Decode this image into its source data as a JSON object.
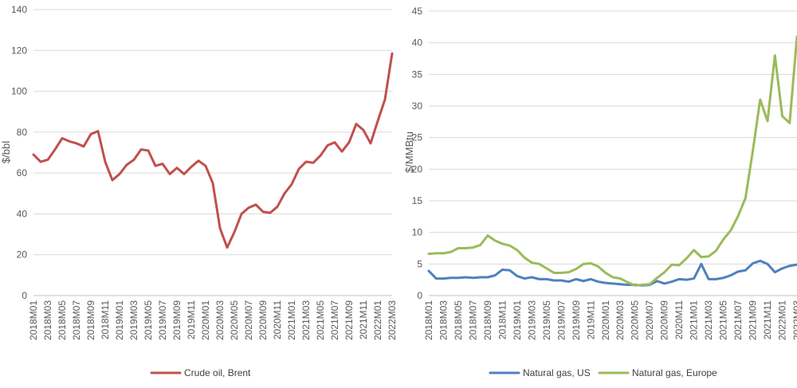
{
  "chart_data": [
    {
      "type": "line",
      "ylabel": "$/bbl",
      "ylim": [
        0,
        140
      ],
      "yticks": [
        0,
        20,
        40,
        60,
        80,
        100,
        120,
        140
      ],
      "x_tick_labels": [
        "2018M01",
        "2018M03",
        "2018M05",
        "2018M07",
        "2018M09",
        "2018M11",
        "2019M01",
        "2019M03",
        "2019M05",
        "2019M07",
        "2019M09",
        "2019M11",
        "2020M01",
        "2020M03",
        "2020M05",
        "2020M07",
        "2020M09",
        "2020M11",
        "2021M01",
        "2021M03",
        "2021M05",
        "2021M07",
        "2021M09",
        "2021M11",
        "2022M01",
        "2022M03"
      ],
      "x": [
        "2018M01",
        "2018M02",
        "2018M03",
        "2018M04",
        "2018M05",
        "2018M06",
        "2018M07",
        "2018M08",
        "2018M09",
        "2018M10",
        "2018M11",
        "2018M12",
        "2019M01",
        "2019M02",
        "2019M03",
        "2019M04",
        "2019M05",
        "2019M06",
        "2019M07",
        "2019M08",
        "2019M09",
        "2019M10",
        "2019M11",
        "2019M12",
        "2020M01",
        "2020M02",
        "2020M03",
        "2020M04",
        "2020M05",
        "2020M06",
        "2020M07",
        "2020M08",
        "2020M09",
        "2020M10",
        "2020M11",
        "2020M12",
        "2021M01",
        "2021M02",
        "2021M03",
        "2021M04",
        "2021M05",
        "2021M06",
        "2021M07",
        "2021M08",
        "2021M09",
        "2021M10",
        "2021M11",
        "2021M12",
        "2022M01",
        "2022M02",
        "2022M03"
      ],
      "legend_position": "bottom",
      "grid": true,
      "series": [
        {
          "name": "Crude oil, Brent",
          "color": "#c0504d",
          "values": [
            69,
            65.5,
            66.5,
            71.5,
            77,
            75.5,
            74.5,
            73,
            79,
            80.5,
            65.5,
            56.5,
            59.5,
            64,
            66.5,
            71.5,
            71,
            63.5,
            64.5,
            59.5,
            62.5,
            59.5,
            63,
            66,
            63.5,
            55,
            33,
            23.5,
            31,
            40,
            43,
            44.5,
            41,
            40.5,
            43.5,
            50,
            54.5,
            62,
            65.5,
            65,
            68.5,
            73.5,
            75,
            70.5,
            75,
            84,
            81,
            74.5,
            85.5,
            96,
            118.5
          ]
        }
      ]
    },
    {
      "type": "line",
      "ylabel": "$/MMBtu",
      "ylim": [
        0,
        45
      ],
      "yticks": [
        0,
        5,
        10,
        15,
        20,
        25,
        30,
        35,
        40,
        45
      ],
      "x_tick_labels": [
        "2018M01",
        "2018M03",
        "2018M05",
        "2018M07",
        "2018M09",
        "2018M11",
        "2019M01",
        "2019M03",
        "2019M05",
        "2019M07",
        "2019M09",
        "2019M11",
        "2020M01",
        "2020M03",
        "2020M05",
        "2020M07",
        "2020M09",
        "2020M11",
        "2021M01",
        "2021M03",
        "2021M05",
        "2021M07",
        "2021M09",
        "2021M11",
        "2022M01",
        "2022M03"
      ],
      "x": [
        "2018M01",
        "2018M02",
        "2018M03",
        "2018M04",
        "2018M05",
        "2018M06",
        "2018M07",
        "2018M08",
        "2018M09",
        "2018M10",
        "2018M11",
        "2018M12",
        "2019M01",
        "2019M02",
        "2019M03",
        "2019M04",
        "2019M05",
        "2019M06",
        "2019M07",
        "2019M08",
        "2019M09",
        "2019M10",
        "2019M11",
        "2019M12",
        "2020M01",
        "2020M02",
        "2020M03",
        "2020M04",
        "2020M05",
        "2020M06",
        "2020M07",
        "2020M08",
        "2020M09",
        "2020M10",
        "2020M11",
        "2020M12",
        "2021M01",
        "2021M02",
        "2021M03",
        "2021M04",
        "2021M05",
        "2021M06",
        "2021M07",
        "2021M08",
        "2021M09",
        "2021M10",
        "2021M11",
        "2021M12",
        "2022M01",
        "2022M02",
        "2022M03"
      ],
      "legend_position": "bottom",
      "grid": true,
      "series": [
        {
          "name": "Natural gas, US",
          "color": "#4f81bd",
          "values": [
            3.9,
            2.7,
            2.7,
            2.8,
            2.8,
            2.9,
            2.8,
            2.9,
            2.9,
            3.2,
            4.1,
            4.0,
            3.1,
            2.7,
            2.9,
            2.6,
            2.6,
            2.4,
            2.4,
            2.2,
            2.6,
            2.3,
            2.6,
            2.2,
            2.0,
            1.9,
            1.8,
            1.7,
            1.7,
            1.6,
            1.7,
            2.3,
            1.9,
            2.2,
            2.6,
            2.5,
            2.7,
            5.0,
            2.6,
            2.6,
            2.8,
            3.2,
            3.8,
            4.0,
            5.1,
            5.5,
            5.0,
            3.7,
            4.3,
            4.7,
            4.9
          ]
        },
        {
          "name": "Natural gas, Europe",
          "color": "#9bbb59",
          "values": [
            6.6,
            6.7,
            6.7,
            6.9,
            7.5,
            7.5,
            7.6,
            8.0,
            9.5,
            8.7,
            8.2,
            7.9,
            7.2,
            6.0,
            5.2,
            5.0,
            4.3,
            3.6,
            3.6,
            3.7,
            4.2,
            5.0,
            5.1,
            4.6,
            3.6,
            2.9,
            2.7,
            2.1,
            1.6,
            1.7,
            1.8,
            2.8,
            3.7,
            4.9,
            4.8,
            5.9,
            7.2,
            6.1,
            6.2,
            7.1,
            8.9,
            10.3,
            12.6,
            15.4,
            22.9,
            31.0,
            27.6,
            38.0,
            28.4,
            27.3,
            41.0
          ]
        }
      ]
    }
  ]
}
